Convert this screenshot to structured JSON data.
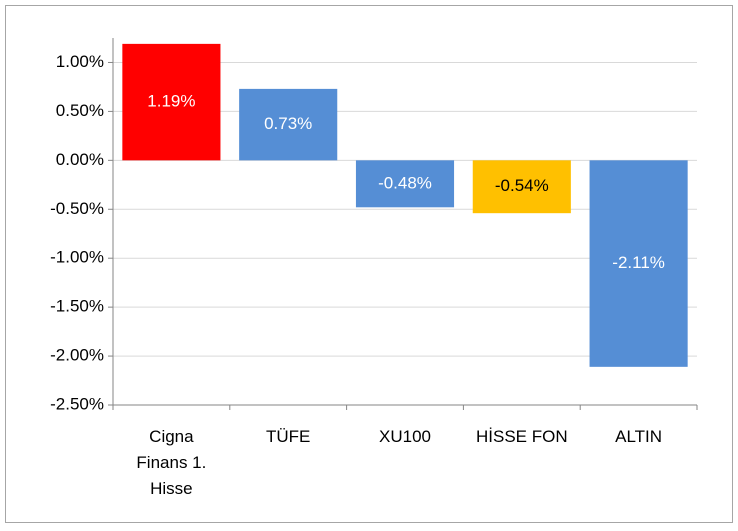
{
  "chart_data": {
    "type": "bar",
    "categories": [
      "Cigna Finans 1. Hisse",
      "TÜFE",
      "XU100",
      "HİSSE FON",
      "ALTIN"
    ],
    "values": [
      1.19,
      0.73,
      -0.48,
      -0.54,
      -2.11
    ],
    "value_labels": [
      "1.19%",
      "0.73%",
      "-0.48%",
      "-0.54%",
      "-2.11%"
    ],
    "colors": [
      "#ff0000",
      "#558ed5",
      "#558ed5",
      "#ffc000",
      "#558ed5"
    ],
    "ylim": [
      -2.5,
      1.25
    ],
    "yticks": [
      {
        "value": -2.5,
        "label": "-2.50%"
      },
      {
        "value": -2,
        "label": "-2.00%"
      },
      {
        "value": -1.5,
        "label": "-1.50%"
      },
      {
        "value": -1,
        "label": "-1.00%"
      },
      {
        "value": -0.5,
        "label": "-0.50%"
      },
      {
        "value": 0,
        "label": "0.00%"
      },
      {
        "value": 0.5,
        "label": "0.50%"
      },
      {
        "value": 1,
        "label": "1.00%"
      }
    ],
    "grid": true
  }
}
